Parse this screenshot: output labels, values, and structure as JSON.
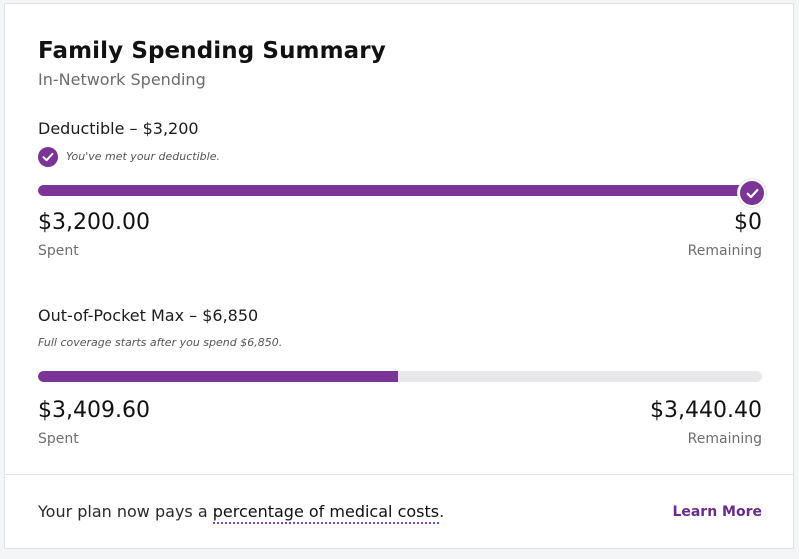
{
  "header": {
    "title": "Family Spending Summary",
    "subtitle": "In-Network Spending"
  },
  "deductible": {
    "title": "Deductible – $3,200",
    "note": "You've met your deductible.",
    "progress_fraction": 1.0,
    "spent_amount": "$3,200.00",
    "spent_label": "Spent",
    "remaining_amount": "$0",
    "remaining_label": "Remaining",
    "icon": "check-icon"
  },
  "out_of_pocket": {
    "title": "Out-of-Pocket Max – $6,850",
    "note": "Full coverage starts after you spend $6,850.",
    "progress_fraction": 0.4977,
    "spent_amount": "$3,409.60",
    "spent_label": "Spent",
    "remaining_amount": "$3,440.40",
    "remaining_label": "Remaining"
  },
  "footer": {
    "text_before": "Your plan now pays a ",
    "link_text": "percentage of medical costs",
    "text_after": ".",
    "learn_more": "Learn More"
  },
  "colors": {
    "accent": "#7b3596",
    "track": "#e8e8ea",
    "link": "#6a2c88"
  }
}
